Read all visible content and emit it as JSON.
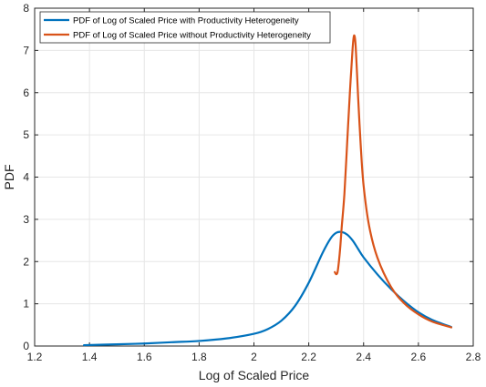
{
  "chart_data": {
    "type": "line",
    "title": "",
    "xlabel": "Log of Scaled Price",
    "ylabel": "PDF",
    "xlim": [
      1.2,
      2.8
    ],
    "ylim": [
      0,
      8
    ],
    "xticks": [
      1.2,
      1.4,
      1.6,
      1.8,
      2,
      2.2,
      2.4,
      2.6,
      2.8
    ],
    "yticks": [
      0,
      1,
      2,
      3,
      4,
      5,
      6,
      7,
      8
    ],
    "xtick_labels": [
      "1.2",
      "1.4",
      "1.6",
      "1.8",
      "2",
      "2.2",
      "2.4",
      "2.6",
      "2.8"
    ],
    "ytick_labels": [
      "0",
      "1",
      "2",
      "3",
      "4",
      "5",
      "6",
      "7",
      "8"
    ],
    "grid": true,
    "legend_position": "top-left",
    "series": [
      {
        "name": "PDF of Log of Scaled Price with Productivity Heterogeneity",
        "color": "#0072BD",
        "x": [
          1.38,
          1.5,
          1.6,
          1.7,
          1.8,
          1.9,
          2.0,
          2.05,
          2.1,
          2.15,
          2.2,
          2.25,
          2.28,
          2.3,
          2.32,
          2.34,
          2.36,
          2.38,
          2.4,
          2.45,
          2.5,
          2.55,
          2.6,
          2.65,
          2.72
        ],
        "y": [
          0.02,
          0.04,
          0.06,
          0.09,
          0.12,
          0.18,
          0.29,
          0.4,
          0.6,
          0.95,
          1.5,
          2.2,
          2.55,
          2.68,
          2.7,
          2.64,
          2.5,
          2.3,
          2.1,
          1.7,
          1.35,
          1.05,
          0.8,
          0.62,
          0.45
        ]
      },
      {
        "name": "PDF of Log of Scaled Price without Productivity Heterogeneity",
        "color": "#D95319",
        "x": [
          2.295,
          2.3,
          2.305,
          2.31,
          2.315,
          2.32,
          2.33,
          2.34,
          2.35,
          2.36,
          2.365,
          2.37,
          2.375,
          2.38,
          2.39,
          2.4,
          2.42,
          2.45,
          2.5,
          2.55,
          2.6,
          2.65,
          2.72
        ],
        "y": [
          1.75,
          1.7,
          1.75,
          2.0,
          2.35,
          2.8,
          3.6,
          4.8,
          6.0,
          7.05,
          7.35,
          7.2,
          6.6,
          5.9,
          4.7,
          3.8,
          2.85,
          2.1,
          1.4,
          1.0,
          0.75,
          0.58,
          0.44
        ]
      }
    ]
  }
}
